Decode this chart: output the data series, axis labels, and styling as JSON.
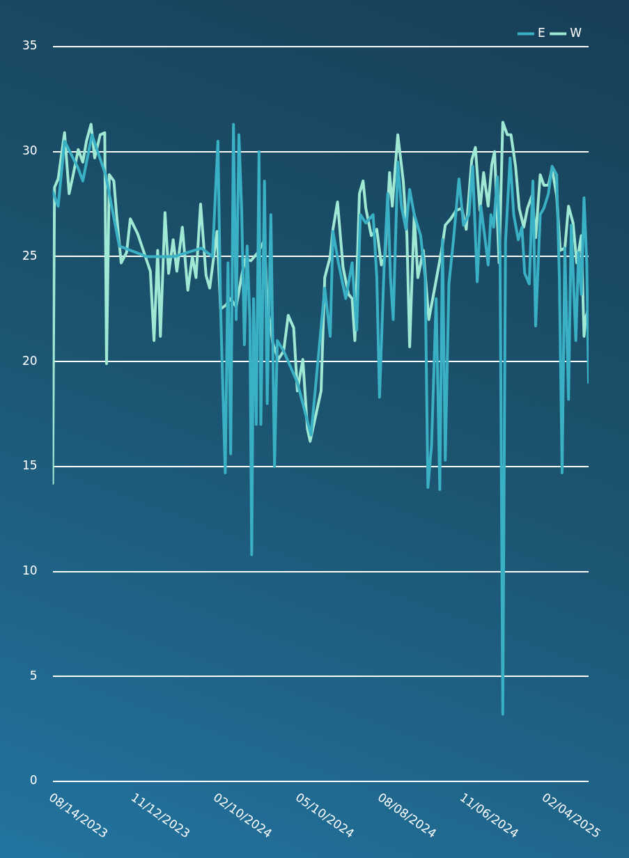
{
  "chart_data": {
    "type": "line",
    "xlim": [
      "2023-08-14",
      "2025-03-23"
    ],
    "xticks": [
      {
        "value": "2023-08-14",
        "label": "08/14/2023"
      },
      {
        "value": "2023-11-12",
        "label": "11/12/2023"
      },
      {
        "value": "2024-02-10",
        "label": "02/10/2024"
      },
      {
        "value": "2024-05-10",
        "label": "05/10/2024"
      },
      {
        "value": "2024-08-08",
        "label": "08/08/2024"
      },
      {
        "value": "2024-11-06",
        "label": "11/06/2024"
      },
      {
        "value": "2025-02-04",
        "label": "02/04/2025"
      }
    ],
    "ylim": [
      0,
      35
    ],
    "yticks": [
      0,
      5,
      10,
      15,
      20,
      25,
      30,
      35
    ],
    "grid": "y",
    "legend": "top right",
    "marker": "none",
    "line_style": "solid",
    "series": [
      {
        "name": "E",
        "color": "#3ab0c4",
        "x": [
          "2023-08-14",
          "2023-08-20",
          "2023-08-27",
          "2023-09-11",
          "2023-09-16",
          "2023-09-26",
          "2023-10-11",
          "2023-10-26",
          "2023-11-25",
          "2023-12-25",
          "2024-01-24",
          "2024-02-05",
          "2024-02-11",
          "2024-02-14",
          "2024-02-19",
          "2024-02-22",
          "2024-02-25",
          "2024-02-28",
          "2024-03-02",
          "2024-03-05",
          "2024-03-08",
          "2024-03-11",
          "2024-03-14",
          "2024-03-17",
          "2024-03-19",
          "2024-03-21",
          "2024-03-24",
          "2024-03-27",
          "2024-03-29",
          "2024-04-02",
          "2024-04-05",
          "2024-04-09",
          "2024-04-13",
          "2024-04-16",
          "2024-04-23",
          "2024-05-08",
          "2024-05-23",
          "2024-06-07",
          "2024-06-13",
          "2024-06-16",
          "2024-06-22",
          "2024-06-30",
          "2024-07-07",
          "2024-07-12",
          "2024-07-16",
          "2024-07-22",
          "2024-07-30",
          "2024-08-03",
          "2024-08-06",
          "2024-08-11",
          "2024-08-15",
          "2024-08-18",
          "2024-08-21",
          "2024-08-26",
          "2024-08-30",
          "2024-09-04",
          "2024-09-08",
          "2024-09-13",
          "2024-09-20",
          "2024-09-25",
          "2024-09-28",
          "2024-10-02",
          "2024-10-07",
          "2024-10-11",
          "2024-10-14",
          "2024-10-17",
          "2024-10-21",
          "2024-10-26",
          "2024-11-01",
          "2024-11-06",
          "2024-11-12",
          "2024-11-16",
          "2024-11-21",
          "2024-11-25",
          "2024-11-30",
          "2024-12-03",
          "2024-12-06",
          "2024-12-09",
          "2024-12-13",
          "2024-12-16",
          "2024-12-19",
          "2024-12-22",
          "2024-12-27",
          "2024-12-31",
          "2025-01-05",
          "2025-01-09",
          "2025-01-12",
          "2025-01-17",
          "2025-01-21",
          "2025-01-24",
          "2025-01-29",
          "2025-02-02",
          "2025-02-07",
          "2025-02-11",
          "2025-02-16",
          "2025-02-19",
          "2025-02-22",
          "2025-02-25",
          "2025-03-01",
          "2025-03-04",
          "2025-03-09",
          "2025-03-12",
          "2025-03-15",
          "2025-03-18",
          "2025-03-21",
          "2025-03-23"
        ],
        "values": [
          28.1,
          27.4,
          30.5,
          29.2,
          28.6,
          30.8,
          28.9,
          25.5,
          25.0,
          25.0,
          25.4,
          25.0,
          30.5,
          22.4,
          14.7,
          24.7,
          15.6,
          31.3,
          22.0,
          30.8,
          27.2,
          20.8,
          25.5,
          22.0,
          10.8,
          23.0,
          17.0,
          30.0,
          17.0,
          28.6,
          18.0,
          27.0,
          15.0,
          21.0,
          20.5,
          19.0,
          16.5,
          23.5,
          21.2,
          26.2,
          24.7,
          23.0,
          24.7,
          21.5,
          27.0,
          26.6,
          27.0,
          24.0,
          18.3,
          24.5,
          28.0,
          24.0,
          22.0,
          29.5,
          27.4,
          26.3,
          28.2,
          27.0,
          26.0,
          24.0,
          14.0,
          16.0,
          23.0,
          13.9,
          25.8,
          15.3,
          23.7,
          25.8,
          28.7,
          26.5,
          27.0,
          29.3,
          23.8,
          27.4,
          25.7,
          24.6,
          27.0,
          26.4,
          28.8,
          25.2,
          3.2,
          25.7,
          29.7,
          27.0,
          25.8,
          26.4,
          24.2,
          23.7,
          28.6,
          21.7,
          27.0,
          27.3,
          28.0,
          29.3,
          28.9,
          24.0,
          14.7,
          25.4,
          18.2,
          26.5,
          21.0,
          25.2,
          23.2,
          27.8,
          24.7,
          19.0
        ]
      },
      {
        "name": "W",
        "color": "#9ee8d4",
        "x": [
          "2023-08-14",
          "2023-08-16",
          "2023-08-20",
          "2023-08-27",
          "2023-09-01",
          "2023-09-05",
          "2023-09-11",
          "2023-09-16",
          "2023-09-20",
          "2023-09-25",
          "2023-09-29",
          "2023-10-05",
          "2023-10-10",
          "2023-10-12",
          "2023-10-15",
          "2023-10-20",
          "2023-10-23",
          "2023-10-28",
          "2023-11-03",
          "2023-11-07",
          "2023-11-15",
          "2023-11-22",
          "2023-11-29",
          "2023-12-03",
          "2023-12-07",
          "2023-12-10",
          "2023-12-15",
          "2023-12-19",
          "2023-12-24",
          "2023-12-28",
          "2024-01-03",
          "2024-01-09",
          "2024-01-14",
          "2024-01-18",
          "2024-01-23",
          "2024-01-29",
          "2024-02-02",
          "2024-02-10",
          "2024-02-14",
          "2024-02-20",
          "2024-02-25",
          "2024-03-02",
          "2024-03-08",
          "2024-03-12",
          "2024-03-18",
          "2024-03-26",
          "2024-04-02",
          "2024-04-05",
          "2024-04-11",
          "2024-04-17",
          "2024-04-23",
          "2024-04-28",
          "2024-05-04",
          "2024-05-08",
          "2024-05-14",
          "2024-05-19",
          "2024-05-22",
          "2024-05-28",
          "2024-06-03",
          "2024-06-07",
          "2024-06-13",
          "2024-06-16",
          "2024-06-21",
          "2024-06-27",
          "2024-07-03",
          "2024-07-07",
          "2024-07-10",
          "2024-07-15",
          "2024-07-19",
          "2024-07-22",
          "2024-07-28",
          "2024-08-03",
          "2024-08-08",
          "2024-08-12",
          "2024-08-17",
          "2024-08-20",
          "2024-08-26",
          "2024-09-01",
          "2024-09-05",
          "2024-09-08",
          "2024-09-13",
          "2024-09-17",
          "2024-09-23",
          "2024-09-29",
          "2024-10-05",
          "2024-10-13",
          "2024-10-17",
          "2024-10-23",
          "2024-10-29",
          "2024-11-04",
          "2024-11-09",
          "2024-11-15",
          "2024-11-19",
          "2024-11-24",
          "2024-11-28",
          "2024-12-03",
          "2024-12-07",
          "2024-12-10",
          "2024-12-15",
          "2024-12-19",
          "2024-12-24",
          "2024-12-28",
          "2025-01-02",
          "2025-01-06",
          "2025-01-11",
          "2025-01-15",
          "2025-01-20",
          "2025-01-24",
          "2025-01-29",
          "2025-02-02",
          "2025-02-07",
          "2025-02-11",
          "2025-02-16",
          "2025-02-20",
          "2025-02-25",
          "2025-03-01",
          "2025-03-06",
          "2025-03-10",
          "2025-03-15",
          "2025-03-18",
          "2025-03-20",
          "2025-03-22"
        ],
        "values": [
          14.2,
          28.3,
          28.7,
          30.9,
          28.0,
          28.8,
          30.1,
          29.5,
          30.5,
          31.3,
          29.7,
          30.8,
          30.9,
          19.9,
          28.9,
          28.6,
          27.0,
          24.7,
          25.2,
          26.8,
          26.1,
          25.2,
          24.3,
          21.0,
          25.3,
          21.2,
          27.1,
          24.2,
          25.8,
          24.3,
          26.4,
          23.4,
          25.0,
          24.0,
          27.5,
          24.1,
          23.5,
          26.2,
          22.5,
          22.7,
          23.0,
          22.6,
          24.1,
          24.9,
          24.8,
          25.2,
          25.8,
          22.8,
          20.9,
          20.1,
          20.5,
          22.2,
          21.6,
          18.6,
          20.1,
          16.8,
          16.2,
          17.4,
          18.6,
          24.0,
          25.0,
          26.3,
          27.6,
          24.5,
          23.2,
          23.0,
          21.0,
          28.0,
          28.6,
          27.3,
          26.0,
          26.3,
          24.6,
          25.0,
          29.0,
          27.4,
          30.8,
          28.6,
          26.0,
          20.7,
          27.0,
          24.0,
          25.3,
          22.0,
          23.4,
          25.3,
          26.5,
          26.8,
          27.2,
          27.3,
          26.3,
          29.6,
          30.2,
          27.2,
          29.0,
          27.4,
          29.4,
          30.0,
          24.7,
          31.4,
          30.8,
          30.8,
          29.3,
          27.3,
          26.4,
          27.3,
          27.9,
          25.9,
          28.9,
          28.4,
          28.4,
          29.2,
          27.9,
          25.3,
          25.4,
          27.4,
          26.6,
          24.7,
          26.0,
          21.2,
          22.1,
          22.4
        ]
      }
    ]
  }
}
